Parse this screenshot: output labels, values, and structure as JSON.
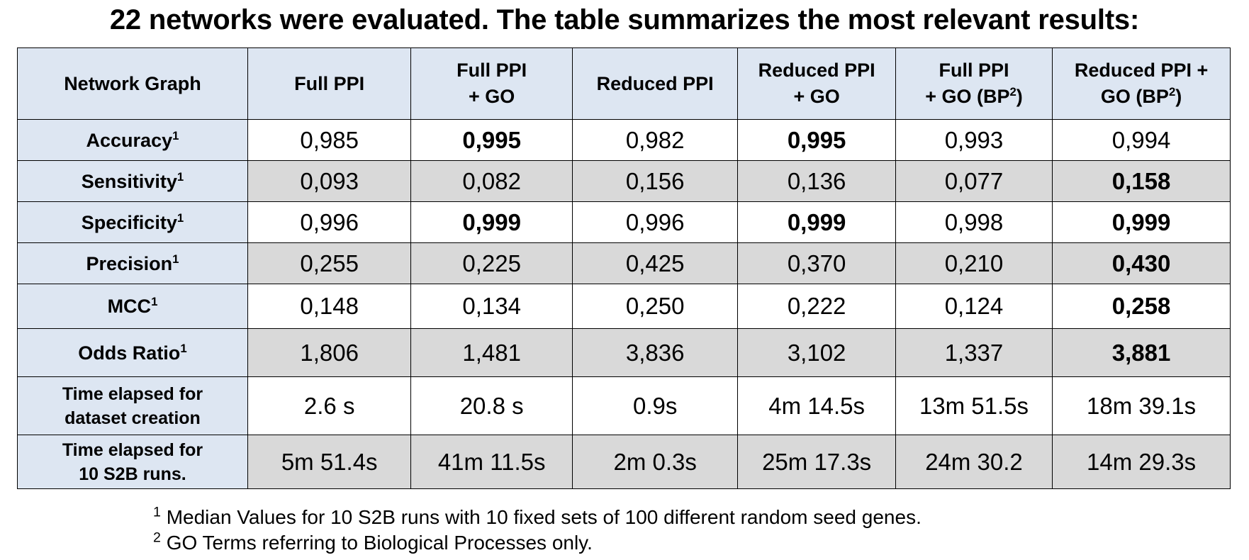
{
  "title": "22 networks were evaluated. The table summarizes the most relevant results:",
  "table": {
    "corner_label": "Network Graph",
    "columns": [
      {
        "line1": "Full PPI",
        "line2": "",
        "sup": ""
      },
      {
        "line1": "Full PPI",
        "line2": "+ GO",
        "sup": ""
      },
      {
        "line1": "Reduced PPI",
        "line2": "",
        "sup": ""
      },
      {
        "line1": "Reduced PPI",
        "line2": "+ GO",
        "sup": ""
      },
      {
        "line1": "Full PPI",
        "line2": "+ GO (BP",
        "sup": "2",
        "suffix": ")"
      },
      {
        "line1": "Reduced PPI +",
        "line2": "GO (BP",
        "sup": "2",
        "suffix": ")"
      }
    ],
    "rows": [
      {
        "label": "Accuracy",
        "label2": "",
        "sup": "1",
        "shaded": false,
        "values": [
          "0,985",
          "0,995",
          "0,982",
          "0,995",
          "0,993",
          "0,994"
        ],
        "bold": [
          false,
          true,
          false,
          true,
          false,
          false
        ]
      },
      {
        "label": "Sensitivity",
        "label2": "",
        "sup": "1",
        "shaded": true,
        "values": [
          "0,093",
          "0,082",
          "0,156",
          "0,136",
          "0,077",
          "0,158"
        ],
        "bold": [
          false,
          false,
          false,
          false,
          false,
          true
        ]
      },
      {
        "label": "Specificity",
        "label2": "",
        "sup": "1",
        "shaded": false,
        "values": [
          "0,996",
          "0,999",
          "0,996",
          "0,999",
          "0,998",
          "0,999"
        ],
        "bold": [
          false,
          true,
          false,
          true,
          false,
          true
        ]
      },
      {
        "label": "Precision",
        "label2": "",
        "sup": "1",
        "shaded": true,
        "values": [
          "0,255",
          "0,225",
          "0,425",
          "0,370",
          "0,210",
          "0,430"
        ],
        "bold": [
          false,
          false,
          false,
          false,
          false,
          true
        ]
      },
      {
        "label": "MCC",
        "label2": "",
        "sup": "1",
        "shaded": false,
        "values": [
          "0,148",
          "0,134",
          "0,250",
          "0,222",
          "0,124",
          "0,258"
        ],
        "bold": [
          false,
          false,
          false,
          false,
          false,
          true
        ]
      },
      {
        "label": "Odds Ratio",
        "label2": "",
        "sup": "1",
        "shaded": true,
        "values": [
          "1,806",
          "1,481",
          "3,836",
          "3,102",
          "1,337",
          "3,881"
        ],
        "bold": [
          false,
          false,
          false,
          false,
          false,
          true
        ]
      },
      {
        "label": "Time elapsed for",
        "label2": "dataset creation",
        "sup": "",
        "shaded": false,
        "values": [
          "2.6 s",
          "20.8 s",
          "0.9s",
          "4m 14.5s",
          "13m 51.5s",
          "18m 39.1s"
        ],
        "bold": [
          false,
          false,
          false,
          false,
          false,
          false
        ]
      },
      {
        "label": "Time elapsed for",
        "label2": "10 S2B runs.",
        "sup": "",
        "shaded": true,
        "values": [
          "5m 51.4s",
          "41m 11.5s",
          "2m 0.3s",
          "25m 17.3s",
          "24m 30.2",
          "14m 29.3s"
        ],
        "bold": [
          false,
          false,
          false,
          false,
          false,
          false
        ]
      }
    ]
  },
  "footnotes": [
    {
      "marker": "1",
      "text": "Median Values for 10 S2B runs with 10 fixed sets of 100 different random seed genes."
    },
    {
      "marker": "2",
      "text": "GO Terms referring to Biological Processes only."
    }
  ],
  "colors": {
    "header_fill": "#dde6f2",
    "shaded_row_fill": "#d9d9d9",
    "plain_row_fill": "#ffffff",
    "border": "#000000"
  }
}
